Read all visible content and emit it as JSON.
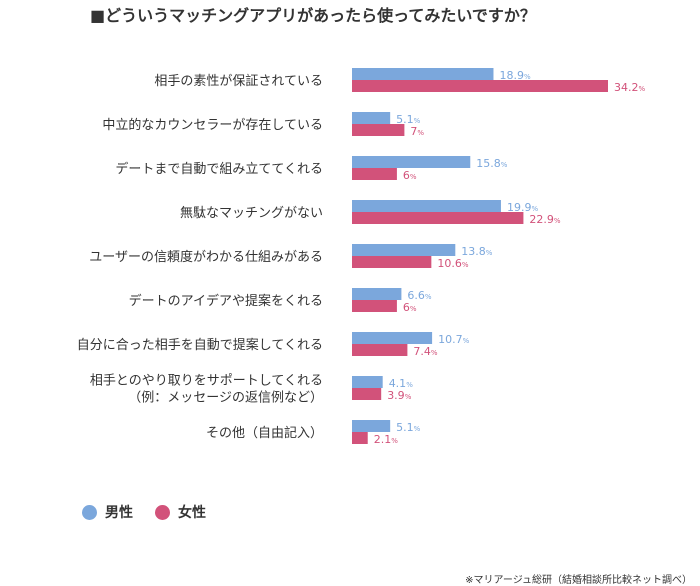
{
  "title": "■どういうマッチングアプリがあったら使ってみたいですか？",
  "source": "※マリアージュ総研（結婚相談所比較ネット調べ）",
  "colors": {
    "male": "#7ba7dc",
    "female": "#d2527a"
  },
  "chart_data": {
    "type": "bar",
    "orientation": "horizontal",
    "title": "■どういうマッチングアプリがあったら使ってみたいですか？",
    "unit": "%",
    "categories": [
      [
        "相手の素性が保証されている"
      ],
      [
        "中立的なカウンセラーが存在している"
      ],
      [
        "デートまで自動で組み立ててくれる"
      ],
      [
        "無駄なマッチングがない"
      ],
      [
        "ユーザーの信頼度がわかる仕組みがある"
      ],
      [
        "デートのアイデアや提案をくれる"
      ],
      [
        "自分に合った相手を自動で提案してくれる"
      ],
      [
        "相手とのやり取りをサポートしてくれる",
        "（例：メッセージの返信例など）"
      ],
      [
        "その他（自由記入）"
      ]
    ],
    "series": [
      {
        "name": "男性",
        "color": "#7ba7dc",
        "values": [
          18.9,
          5.1,
          15.8,
          19.9,
          13.8,
          6.6,
          10.7,
          4.1,
          5.1
        ],
        "labels": [
          "18.9",
          "5.1",
          "15.8",
          "19.9",
          "13.8",
          "6.6",
          "10.7",
          "4.1",
          "5.1"
        ]
      },
      {
        "name": "女性",
        "color": "#d2527a",
        "values": [
          34.2,
          7,
          6,
          22.9,
          10.6,
          6,
          7.4,
          3.9,
          2.1
        ],
        "labels": [
          "34.2",
          "7",
          "6",
          "22.9",
          "10.6",
          "6",
          "7.4",
          "3.9",
          "2.1"
        ]
      }
    ],
    "xlim": [
      0,
      34.2
    ],
    "grid": false,
    "legend_position": "bottom-left"
  }
}
